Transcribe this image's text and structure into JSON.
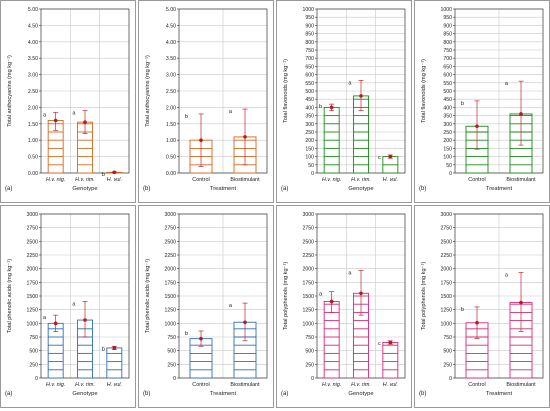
{
  "chart_data": [
    {
      "type": "bar",
      "panel_label": "(a)",
      "ylabel": "Total anthocyanins (mg kg⁻¹)",
      "xlabel": "Genotype",
      "ylim": [
        0,
        5
      ],
      "yticks": [
        "0.00",
        "0.50",
        "1.00",
        "1.50",
        "2.00",
        "2.50",
        "3.00",
        "3.50",
        "4.00",
        "4.50",
        "5.00"
      ],
      "categories": [
        "H.v. nig.",
        "H.v. rim.",
        "H. vul."
      ],
      "values": [
        1.6,
        1.55,
        0.02
      ],
      "error_low": [
        1.3,
        1.2,
        0.0
      ],
      "error_high": [
        1.85,
        1.9,
        0.03
      ],
      "letters": [
        "a",
        "a",
        "b"
      ],
      "color": "#d2691e"
    },
    {
      "type": "bar",
      "panel_label": "(b)",
      "ylabel": "Total anthocyanins (mg kg⁻¹)",
      "xlabel": "Treatment",
      "ylim": [
        0,
        5
      ],
      "yticks": [
        "0.00",
        "0.50",
        "1.00",
        "1.50",
        "2.00",
        "2.50",
        "3.00",
        "3.50",
        "4.00",
        "4.50",
        "5.00"
      ],
      "categories": [
        "Control",
        "Biostimulant"
      ],
      "values": [
        1.0,
        1.1
      ],
      "error_low": [
        0.2,
        0.25
      ],
      "error_high": [
        1.8,
        1.95
      ],
      "letters": [
        "b",
        "a"
      ],
      "color": "#d2691e"
    },
    {
      "type": "bar",
      "panel_label": "(a)",
      "ylabel": "Total flavonoids (mg kg⁻¹)",
      "xlabel": "Genotype",
      "ylim": [
        0,
        1000
      ],
      "yticks": [
        "0",
        "50",
        "100",
        "150",
        "200",
        "250",
        "300",
        "350",
        "400",
        "450",
        "500",
        "550",
        "600",
        "650",
        "700",
        "750",
        "800",
        "850",
        "900",
        "950",
        "1000"
      ],
      "categories": [
        "H.v. nig.",
        "H.v. rim.",
        "H. vul."
      ],
      "values": [
        400,
        470,
        100
      ],
      "error_low": [
        380,
        380,
        90
      ],
      "error_high": [
        420,
        565,
        110
      ],
      "letters": [
        "b",
        "a",
        "c"
      ],
      "color": "#1a8a1a"
    },
    {
      "type": "bar",
      "panel_label": "(b)",
      "ylabel": "Total flavonoids (mg kg⁻¹)",
      "xlabel": "Treatment",
      "ylim": [
        0,
        1000
      ],
      "yticks": [
        "0",
        "50",
        "100",
        "150",
        "200",
        "250",
        "300",
        "350",
        "400",
        "450",
        "500",
        "550",
        "600",
        "650",
        "700",
        "750",
        "800",
        "850",
        "900",
        "950",
        "1000"
      ],
      "categories": [
        "Control",
        "Biostimulant"
      ],
      "values": [
        285,
        360
      ],
      "error_low": [
        145,
        170
      ],
      "error_high": [
        440,
        560
      ],
      "letters": [
        "b",
        "a"
      ],
      "color": "#1a8a1a"
    },
    {
      "type": "bar",
      "panel_label": "(a)",
      "ylabel": "Total phenolic acids (mg kg⁻¹)",
      "xlabel": "Genotype",
      "ylim": [
        0,
        3000
      ],
      "yticks": [
        "0",
        "250",
        "500",
        "750",
        "1000",
        "1250",
        "1500",
        "1750",
        "2000",
        "2250",
        "2500",
        "2750",
        "3000"
      ],
      "categories": [
        "H.v. nig.",
        "H.v. rim.",
        "H. vul."
      ],
      "values": [
        1000,
        1060,
        550
      ],
      "error_low": [
        850,
        750,
        520
      ],
      "error_high": [
        1150,
        1400,
        580
      ],
      "letters": [
        "a",
        "a",
        "b"
      ],
      "color": "#2f6fb3"
    },
    {
      "type": "bar",
      "panel_label": "(b)",
      "ylabel": "Total phenolic acids (mg kg⁻¹)",
      "xlabel": "Treatment",
      "ylim": [
        0,
        3000
      ],
      "yticks": [
        "0",
        "250",
        "500",
        "750",
        "1000",
        "1250",
        "1500",
        "1750",
        "2000",
        "2250",
        "2500",
        "2750",
        "3000"
      ],
      "categories": [
        "Control",
        "Biostimulant"
      ],
      "values": [
        720,
        1020
      ],
      "error_low": [
        580,
        680
      ],
      "error_high": [
        860,
        1370
      ],
      "letters": [
        "b",
        "a"
      ],
      "color": "#2f6fb3"
    },
    {
      "type": "bar",
      "panel_label": "(a)",
      "ylabel": "Total polyphenols (mg kg⁻¹)",
      "xlabel": "Genotype",
      "ylim": [
        0,
        3000
      ],
      "yticks": [
        "0",
        "250",
        "500",
        "750",
        "1000",
        "1250",
        "1500",
        "1750",
        "2000",
        "2250",
        "2500",
        "2750",
        "3000"
      ],
      "categories": [
        "H.v. nig.",
        "H.v. rim.",
        "H. vul."
      ],
      "values": [
        1400,
        1550,
        650
      ],
      "error_low": [
        1200,
        1150,
        620
      ],
      "error_high": [
        1580,
        1970,
        680
      ],
      "letters": [
        "a",
        "a",
        "c"
      ],
      "color": "#d6287a"
    },
    {
      "type": "bar",
      "panel_label": "(b)",
      "ylabel": "Total polyphenols (mg kg⁻¹)",
      "xlabel": "Treatment",
      "ylim": [
        0,
        3000
      ],
      "yticks": [
        "0",
        "250",
        "500",
        "750",
        "1000",
        "1250",
        "1500",
        "1750",
        "2000",
        "2250",
        "2500",
        "2750",
        "3000"
      ],
      "categories": [
        "Control",
        "Biostimulant"
      ],
      "values": [
        1010,
        1380
      ],
      "error_low": [
        720,
        850
      ],
      "error_high": [
        1300,
        1930
      ],
      "letters": [
        "b",
        "a"
      ],
      "color": "#d6287a"
    }
  ]
}
